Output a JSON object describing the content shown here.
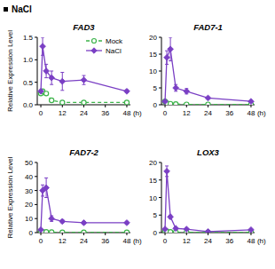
{
  "header": {
    "title": "NaCl"
  },
  "chart_data": [
    {
      "type": "line",
      "title": "FAD3",
      "y_label": "Relative Expression Level",
      "x_label": "(h)",
      "x": [
        0,
        1,
        3,
        6,
        12,
        24,
        48
      ],
      "xlim": [
        -2,
        50
      ],
      "xticks": [
        0,
        12,
        24,
        36,
        48
      ],
      "ylim": [
        0,
        1.5
      ],
      "yticks": [
        {
          "value": 0,
          "label": "0.0"
        },
        {
          "value": 0.5,
          "label": "0.5"
        },
        {
          "value": 1,
          "label": "1.0"
        },
        {
          "value": 1.5,
          "label": "1.5"
        }
      ],
      "grid": false,
      "legend": "top-right",
      "series": [
        {
          "name": "Mock",
          "color": "#3cb34a",
          "line_style": "dashed",
          "marker": "circle",
          "values": [
            0.25,
            0.3,
            0.25,
            0.1,
            0.05,
            0.05,
            0.05
          ]
        },
        {
          "name": "NaCl",
          "color": "#7a3fc4",
          "line_style": "solid",
          "marker": "diamond",
          "values": [
            0.3,
            1.3,
            0.75,
            0.6,
            0.52,
            0.55,
            0.3
          ],
          "errors": [
            0.03,
            0.2,
            0.15,
            0.15,
            0.2,
            0.1,
            0.03
          ]
        }
      ]
    },
    {
      "type": "line",
      "title": "FAD7-1",
      "x_label": "(h)",
      "x": [
        0,
        1,
        3,
        6,
        12,
        24,
        48
      ],
      "xlim": [
        -2,
        50
      ],
      "xticks": [
        0,
        12,
        24,
        36,
        48
      ],
      "ylim": [
        0,
        20
      ],
      "yticks": [
        0,
        5,
        10,
        15,
        20
      ],
      "grid": false,
      "series": [
        {
          "color": "#3cb34a",
          "line_style": "dashed",
          "marker": "circle",
          "values": [
            1,
            0.5,
            0.3,
            0.2,
            0.1,
            0.1,
            0.1
          ]
        },
        {
          "color": "#7a3fc4",
          "line_style": "solid",
          "marker": "diamond",
          "values": [
            1,
            14,
            16.5,
            5,
            4,
            2,
            1
          ],
          "errors": [
            0.2,
            2,
            3.5,
            1,
            0.8,
            0.3,
            0.2
          ]
        }
      ]
    },
    {
      "type": "line",
      "title": "FAD7-2",
      "y_label": "Relative Expression Level",
      "x_label": "(h)",
      "x": [
        0,
        1,
        3,
        6,
        12,
        24,
        48
      ],
      "xlim": [
        -2,
        50
      ],
      "xticks": [
        0,
        12,
        24,
        36,
        48
      ],
      "ylim": [
        0,
        50
      ],
      "yticks": [
        0,
        10,
        20,
        30,
        40,
        50
      ],
      "grid": false,
      "series": [
        {
          "color": "#3cb34a",
          "line_style": "dashed",
          "marker": "circle",
          "values": [
            1,
            0.5,
            0.5,
            0.3,
            0.2,
            0.2,
            0.2
          ]
        },
        {
          "color": "#7a3fc4",
          "line_style": "solid",
          "marker": "diamond",
          "values": [
            2,
            30,
            32,
            10,
            8,
            7,
            7
          ],
          "errors": [
            0.5,
            4,
            7,
            2,
            1,
            1,
            1
          ]
        }
      ]
    },
    {
      "type": "line",
      "title": "LOX3",
      "x_label": "(h)",
      "x": [
        0,
        1,
        3,
        6,
        12,
        24,
        48
      ],
      "xlim": [
        -2,
        50
      ],
      "xticks": [
        0,
        12,
        24,
        36,
        48
      ],
      "ylim": [
        0,
        20
      ],
      "yticks": [
        0,
        5,
        10,
        15,
        20
      ],
      "grid": false,
      "series": [
        {
          "color": "#3cb34a",
          "line_style": "dashed",
          "marker": "circle",
          "values": [
            0.5,
            0.3,
            0.2,
            0.1,
            0.1,
            0.1,
            0.1
          ]
        },
        {
          "color": "#7a3fc4",
          "line_style": "solid",
          "marker": "diamond",
          "values": [
            1,
            17.5,
            4.5,
            1.2,
            1,
            0.3,
            0.8
          ],
          "errors": [
            0.1,
            1.5,
            0.5,
            0.2,
            0.1,
            0.1,
            0.1
          ]
        }
      ]
    }
  ]
}
